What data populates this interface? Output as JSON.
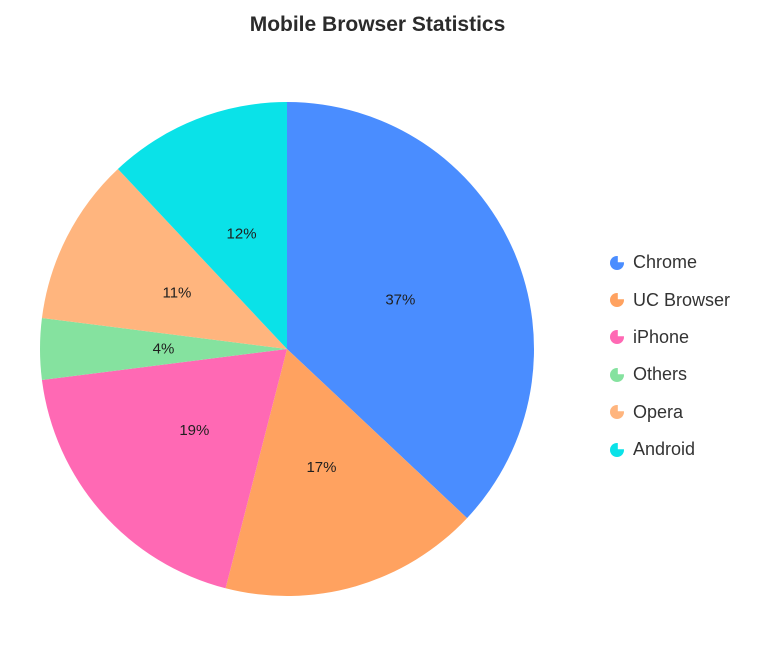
{
  "chart_data": {
    "type": "pie",
    "title": "Mobile Browser Statistics",
    "categories": [
      "Chrome",
      "UC Browser",
      "iPhone",
      "Others",
      "Opera",
      "Android"
    ],
    "values": [
      37,
      17,
      19,
      4,
      11,
      12
    ],
    "labels": [
      "37%",
      "17%",
      "19%",
      "4%",
      "11%",
      "12%"
    ],
    "colors": [
      "#4a8dff",
      "#ffa260",
      "#ff69b4",
      "#85e29f",
      "#ffb57e",
      "#0ae2e8"
    ],
    "legend_position": "right",
    "start_angle": "top, clockwise"
  },
  "legend_icon": "pie-icon"
}
